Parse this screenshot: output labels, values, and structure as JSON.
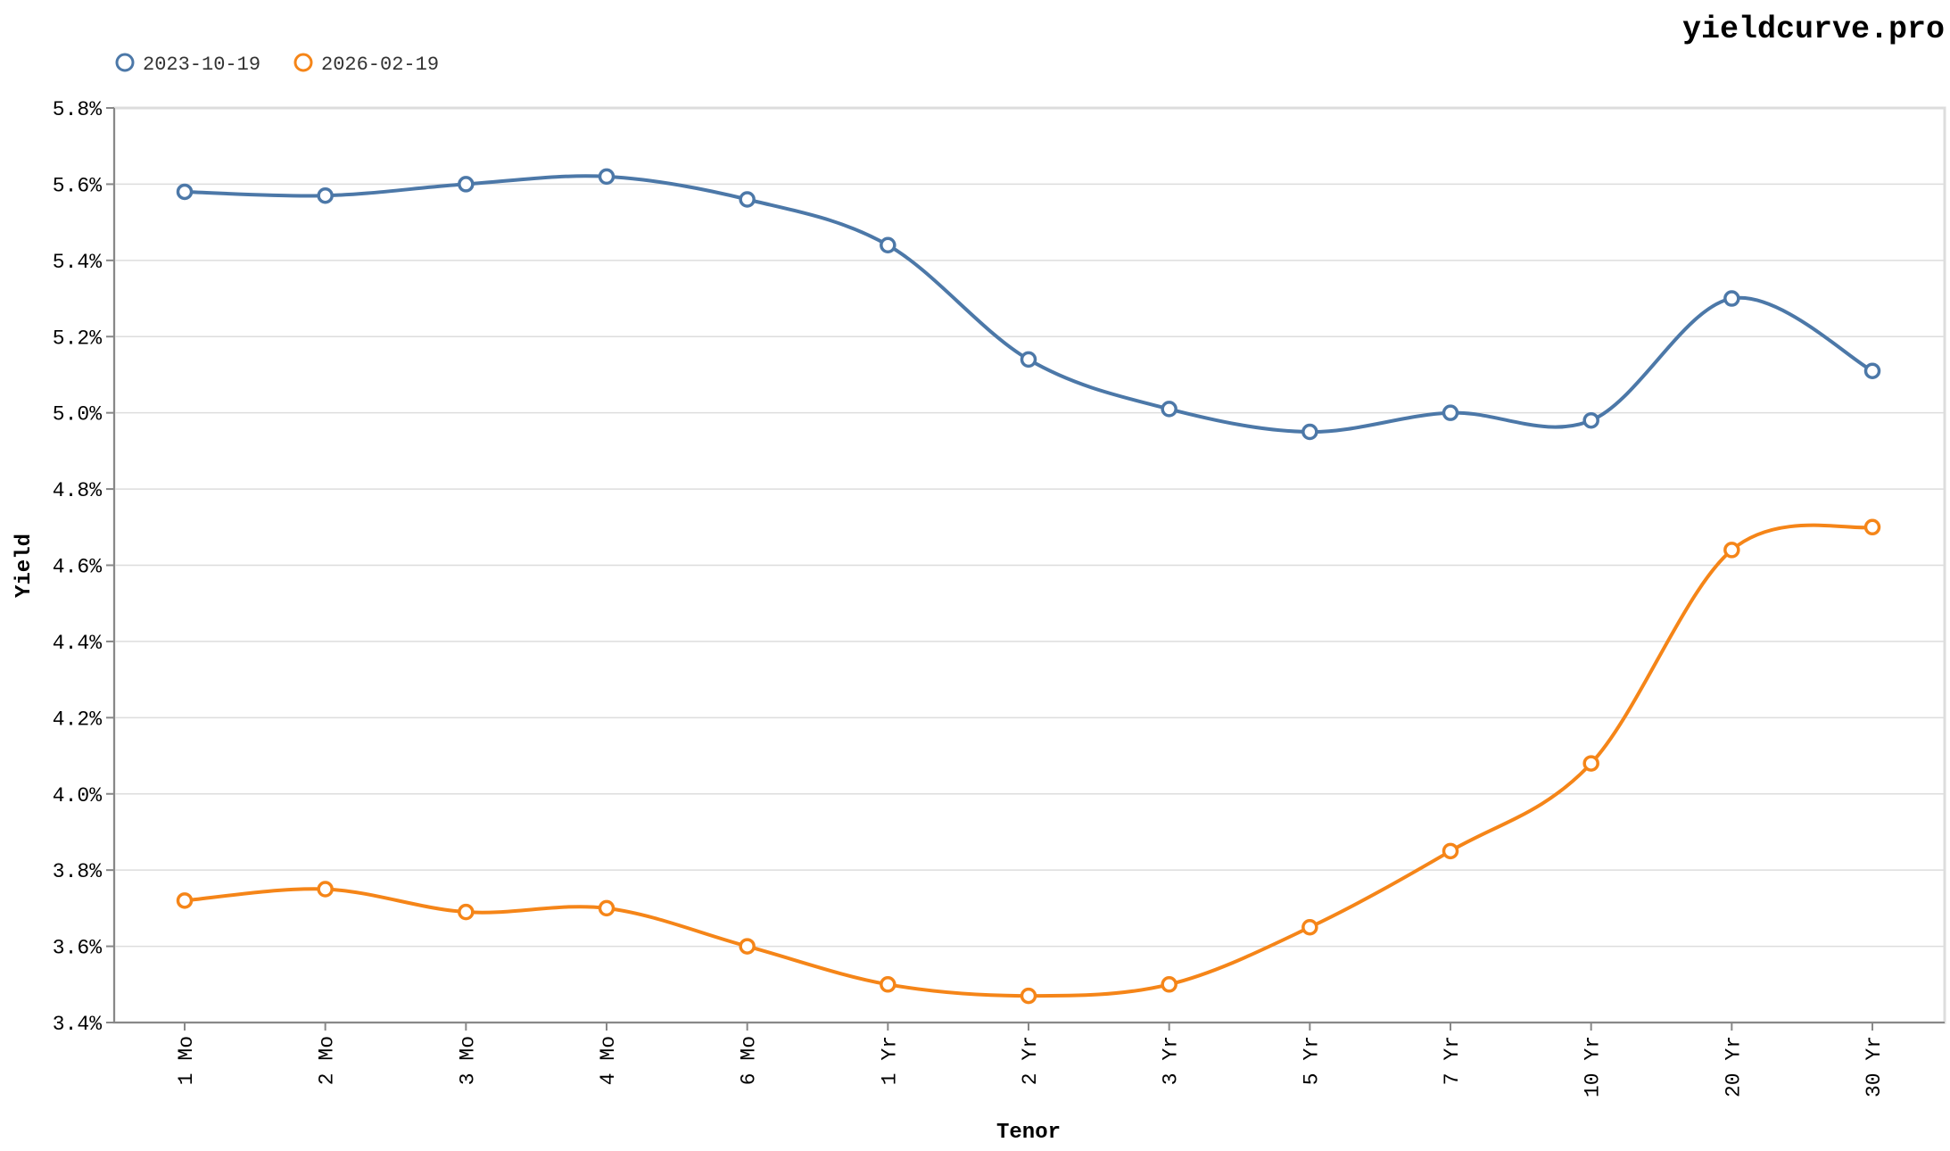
{
  "brand": "yieldcurve.pro",
  "chart_data": {
    "type": "line",
    "xlabel": "Tenor",
    "ylabel": "Yield",
    "categories": [
      "1 Mo",
      "2 Mo",
      "3 Mo",
      "4 Mo",
      "6 Mo",
      "1 Yr",
      "2 Yr",
      "3 Yr",
      "5 Yr",
      "7 Yr",
      "10 Yr",
      "20 Yr",
      "30 Yr"
    ],
    "ylim": [
      3.4,
      5.8
    ],
    "yticks": [
      3.4,
      3.6,
      3.8,
      4.0,
      4.2,
      4.4,
      4.6,
      4.8,
      5.0,
      5.2,
      5.4,
      5.6,
      5.8
    ],
    "y_tick_suffix": "%",
    "grid": "horizontal",
    "legend_position": "top-left",
    "series": [
      {
        "name": "2023-10-19",
        "color": "#4c78a8",
        "values": [
          5.58,
          5.57,
          5.6,
          5.62,
          5.56,
          5.44,
          5.14,
          5.01,
          4.95,
          5.0,
          4.98,
          5.3,
          5.11
        ]
      },
      {
        "name": "2026-02-19",
        "color": "#f58518",
        "values": [
          3.72,
          3.75,
          3.69,
          3.7,
          3.6,
          3.5,
          3.47,
          3.5,
          3.65,
          3.85,
          4.08,
          4.64,
          4.7
        ]
      }
    ]
  }
}
